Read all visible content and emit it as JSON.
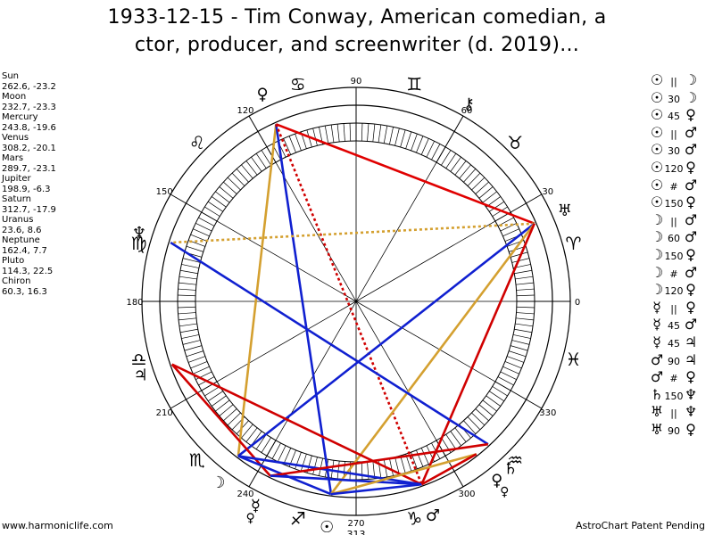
{
  "title_line1": "1933-12-15 - Tim Conway, American comedian, a",
  "title_line2": "ctor, producer, and screenwriter (d. 2019)...",
  "footer_left": "www.harmoniclife.com",
  "footer_right": "AstroChart Patent Pending",
  "planets": [
    {
      "name": "Sun",
      "coords": "262.6, -23.2",
      "glyph": "☉",
      "lon": 262.6,
      "color": "#000000"
    },
    {
      "name": "Moon",
      "coords": "232.7, -23.3",
      "glyph": "☽",
      "lon": 232.7,
      "color": "#000000"
    },
    {
      "name": "Mercury",
      "coords": "243.8, -19.6",
      "glyph": "☿",
      "lon": 243.8,
      "color": "#000000"
    },
    {
      "name": "Venus",
      "coords": "308.2, -20.1",
      "glyph": "♀",
      "lon": 308.2,
      "color": "#000000"
    },
    {
      "name": "Mars",
      "coords": "289.7, -23.1",
      "glyph": "♂",
      "lon": 289.7,
      "color": "#000000"
    },
    {
      "name": "Jupiter",
      "coords": "198.9, -6.3",
      "glyph": "♃",
      "lon": 198.9,
      "color": "#000000"
    },
    {
      "name": "Saturn",
      "coords": "312.7, -17.9",
      "glyph": "♄",
      "lon": 312.7,
      "color": "#000000"
    },
    {
      "name": "Uranus",
      "coords": "23.6, 8.6",
      "glyph": "♅",
      "lon": 23.6,
      "color": "#000000"
    },
    {
      "name": "Neptune",
      "coords": "162.4, 7.7",
      "glyph": "♆",
      "lon": 162.4,
      "color": "#000000"
    },
    {
      "name": "Pluto",
      "coords": "114.3, 22.5",
      "glyph": "♀",
      "lon": 114.3,
      "color": "#000000"
    },
    {
      "name": "Chiron",
      "coords": "60.3, 16.3",
      "glyph": "⚷",
      "lon": 60.3,
      "color": "#000000"
    }
  ],
  "extra_points": [
    {
      "glyph": "♀",
      "lon": 244,
      "r": 190
    },
    {
      "glyph": "♀",
      "lon": 308,
      "r": 190
    }
  ],
  "zodiac_signs": [
    {
      "glyph": "♈",
      "lon": 15
    },
    {
      "glyph": "♉",
      "lon": 45
    },
    {
      "glyph": "♊",
      "lon": 75
    },
    {
      "glyph": "♋",
      "lon": 105
    },
    {
      "glyph": "♌",
      "lon": 135
    },
    {
      "glyph": "♍",
      "lon": 165
    },
    {
      "glyph": "♎",
      "lon": 195
    },
    {
      "glyph": "♏",
      "lon": 225
    },
    {
      "glyph": "♐",
      "lon": 255
    },
    {
      "glyph": "♑",
      "lon": 285
    },
    {
      "glyph": "♒",
      "lon": 315
    },
    {
      "glyph": "♓",
      "lon": 345
    }
  ],
  "degree_labels": [
    "0",
    "30",
    "60",
    "90",
    "120",
    "150",
    "180",
    "210",
    "240",
    "270",
    "300",
    "330"
  ],
  "extra_label": {
    "text": "313",
    "lon": 270
  },
  "aspect_list": [
    {
      "p1": "☉",
      "aspect": "||",
      "p2": "☽"
    },
    {
      "p1": "☉",
      "aspect": "30",
      "p2": "☽"
    },
    {
      "p1": "☉",
      "aspect": "45",
      "p2": "♀"
    },
    {
      "p1": "☉",
      "aspect": "||",
      "p2": "♂"
    },
    {
      "p1": "☉",
      "aspect": "30",
      "p2": "♂"
    },
    {
      "p1": "☉",
      "aspect": "120",
      "p2": "♀"
    },
    {
      "p1": "☉",
      "aspect": "#",
      "p2": "♂"
    },
    {
      "p1": "☉",
      "aspect": "150",
      "p2": "♀"
    },
    {
      "p1": "☽",
      "aspect": "||",
      "p2": "♂"
    },
    {
      "p1": "☽",
      "aspect": "60",
      "p2": "♂"
    },
    {
      "p1": "☽",
      "aspect": "150",
      "p2": "♀"
    },
    {
      "p1": "☽",
      "aspect": "#",
      "p2": "♂"
    },
    {
      "p1": "☽",
      "aspect": "120",
      "p2": "♀"
    },
    {
      "p1": "☿",
      "aspect": "||",
      "p2": "♀"
    },
    {
      "p1": "☿",
      "aspect": "45",
      "p2": "♂"
    },
    {
      "p1": "☿",
      "aspect": "45",
      "p2": "♃"
    },
    {
      "p1": "♂",
      "aspect": "90",
      "p2": "♃"
    },
    {
      "p1": "♂",
      "aspect": "#",
      "p2": "♀"
    },
    {
      "p1": "♄",
      "aspect": "150",
      "p2": "♆"
    },
    {
      "p1": "♅",
      "aspect": "||",
      "p2": "♆"
    },
    {
      "p1": "♅",
      "aspect": "90",
      "p2": "♀"
    }
  ],
  "aspect_lines": [
    {
      "from": "Pluto",
      "to": "Uranus",
      "color": "#e00000",
      "dash": false
    },
    {
      "from": "Pluto",
      "to": "Moon",
      "color": "#d4a030",
      "dash": false
    },
    {
      "from": "Pluto",
      "to": "Sun",
      "color": "#1020d0",
      "dash": false
    },
    {
      "from": "Pluto",
      "to": "Mars",
      "color": "#d00000",
      "dash": true
    },
    {
      "from": "Uranus",
      "to": "Neptune",
      "color": "#d4a030",
      "dash": true
    },
    {
      "from": "Uranus",
      "to": "Moon",
      "color": "#1020d0",
      "dash": false
    },
    {
      "from": "Uranus",
      "to": "Sun",
      "color": "#d4a030",
      "dash": false
    },
    {
      "from": "Uranus",
      "to": "Mars",
      "color": "#d00000",
      "dash": false
    },
    {
      "from": "Neptune",
      "to": "Saturn",
      "color": "#1020d0",
      "dash": false
    },
    {
      "from": "Jupiter",
      "to": "Mars",
      "color": "#d00000",
      "dash": false
    },
    {
      "from": "Jupiter",
      "to": "Mercury",
      "color": "#d00000",
      "dash": false
    },
    {
      "from": "Moon",
      "to": "Sun",
      "color": "#1020d0",
      "dash": false
    },
    {
      "from": "Moon",
      "to": "Mars",
      "color": "#1020d0",
      "dash": false
    },
    {
      "from": "Mercury",
      "to": "Saturn",
      "color": "#d00000",
      "dash": false
    },
    {
      "from": "Mercury",
      "to": "Mars",
      "color": "#1020d0",
      "dash": false
    },
    {
      "from": "Sun",
      "to": "Venus",
      "color": "#d4a030",
      "dash": false
    },
    {
      "from": "Sun",
      "to": "Mars",
      "color": "#1020d0",
      "dash": false
    },
    {
      "from": "Venus",
      "to": "Mars",
      "color": "#d00000",
      "dash": false
    }
  ]
}
